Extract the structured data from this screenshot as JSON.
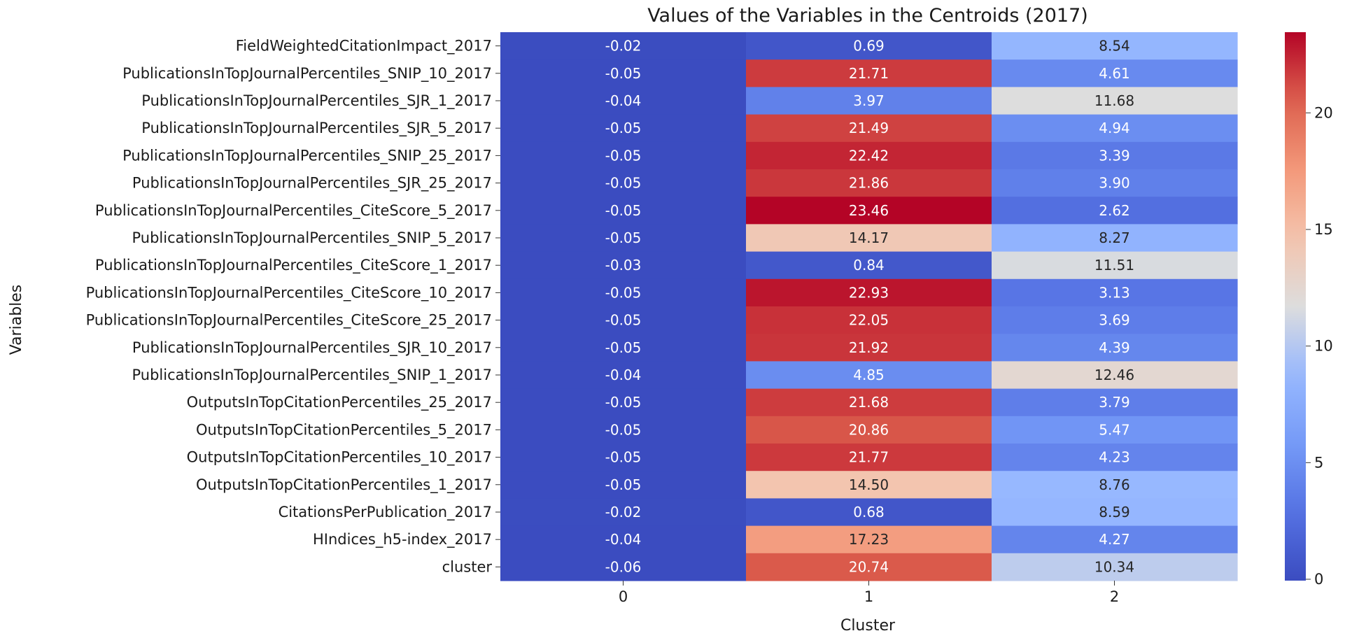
{
  "chart_data": {
    "type": "heatmap",
    "title": "Values of the Variables in the Centroids (2017)",
    "xlabel": "Cluster",
    "ylabel": "Variables",
    "x_categories": [
      "0",
      "1",
      "2"
    ],
    "y_categories": [
      "FieldWeightedCitationImpact_2017",
      "PublicationsInTopJournalPercentiles_SNIP_10_2017",
      "PublicationsInTopJournalPercentiles_SJR_1_2017",
      "PublicationsInTopJournalPercentiles_SJR_5_2017",
      "PublicationsInTopJournalPercentiles_SNIP_25_2017",
      "PublicationsInTopJournalPercentiles_SJR_25_2017",
      "PublicationsInTopJournalPercentiles_CiteScore_5_2017",
      "PublicationsInTopJournalPercentiles_SNIP_5_2017",
      "PublicationsInTopJournalPercentiles_CiteScore_1_2017",
      "PublicationsInTopJournalPercentiles_CiteScore_10_2017",
      "PublicationsInTopJournalPercentiles_CiteScore_25_2017",
      "PublicationsInTopJournalPercentiles_SJR_10_2017",
      "PublicationsInTopJournalPercentiles_SNIP_1_2017",
      "OutputsInTopCitationPercentiles_25_2017",
      "OutputsInTopCitationPercentiles_5_2017",
      "OutputsInTopCitationPercentiles_10_2017",
      "OutputsInTopCitationPercentiles_1_2017",
      "CitationsPerPublication_2017",
      "HIndices_h5-index_2017",
      "cluster"
    ],
    "values": [
      [
        -0.02,
        0.69,
        8.54
      ],
      [
        -0.05,
        21.71,
        4.61
      ],
      [
        -0.04,
        3.97,
        11.68
      ],
      [
        -0.05,
        21.49,
        4.94
      ],
      [
        -0.05,
        22.42,
        3.39
      ],
      [
        -0.05,
        21.86,
        3.9
      ],
      [
        -0.05,
        23.46,
        2.62
      ],
      [
        -0.05,
        14.17,
        8.27
      ],
      [
        -0.03,
        0.84,
        11.51
      ],
      [
        -0.05,
        22.93,
        3.13
      ],
      [
        -0.05,
        22.05,
        3.69
      ],
      [
        -0.05,
        21.92,
        4.39
      ],
      [
        -0.04,
        4.85,
        12.46
      ],
      [
        -0.05,
        21.68,
        3.79
      ],
      [
        -0.05,
        20.86,
        5.47
      ],
      [
        -0.05,
        21.77,
        4.23
      ],
      [
        -0.05,
        14.5,
        8.76
      ],
      [
        -0.02,
        0.68,
        8.59
      ],
      [
        -0.04,
        17.23,
        4.27
      ],
      [
        -0.06,
        20.74,
        10.34
      ]
    ],
    "value_format_decimals": 2,
    "colormap": "coolwarm",
    "colorbar": {
      "vmin": -0.06,
      "vmax": 23.46,
      "ticks": [
        0,
        5,
        10,
        15,
        20
      ]
    },
    "grid": false,
    "legend": "colorbar-right"
  }
}
